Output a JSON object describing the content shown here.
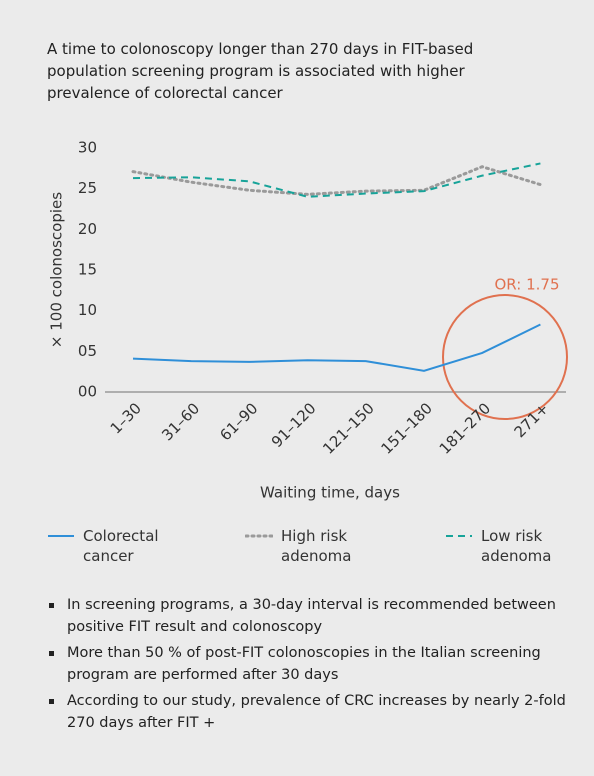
{
  "chart_data": {
    "type": "line",
    "title": "A time to colonoscopy longer than 270 days in FIT-based population screening program is associated with higher prevalence of colorectal cancer",
    "ylabel": "× 100 colonoscopies",
    "xlabel": "Waiting time, days",
    "categories": [
      "1–30",
      "31–60",
      "61–90",
      "91–120",
      "121–150",
      "151–180",
      "181–270",
      "271+"
    ],
    "series": [
      {
        "name": "Colorectal cancer",
        "color": "#2f8fd8",
        "style": "solid",
        "values": [
          4.1,
          3.8,
          3.7,
          3.9,
          3.8,
          2.6,
          4.8,
          8.3
        ]
      },
      {
        "name": "High risk adenoma",
        "color": "#9a9a9a",
        "style": "dotted",
        "values": [
          27.1,
          25.8,
          24.8,
          24.3,
          24.7,
          24.8,
          27.7,
          25.5
        ]
      },
      {
        "name": "Low risk adenoma",
        "color": "#17a399",
        "style": "dashed",
        "values": [
          26.3,
          26.4,
          25.9,
          24.0,
          24.4,
          24.7,
          26.6,
          28.1
        ]
      }
    ],
    "ylim": [
      0,
      30
    ],
    "yticks": [
      30,
      25,
      20,
      15,
      10,
      {
        "value": 5,
        "label": "05"
      },
      {
        "value": 0,
        "label": "00"
      }
    ],
    "grid": false,
    "annotation": "OR: 1.75",
    "legend": "bottom",
    "notes": [
      "In screening programs, a 30-day interval is recommended between positive FIT result and colonoscopy",
      "More than 50 % of post-FIT colonoscopies in the Italian screening program are performed after 30 days",
      "According to our study, prevalence of CRC increases by nearly 2-fold 270 days after FIT +"
    ]
  }
}
